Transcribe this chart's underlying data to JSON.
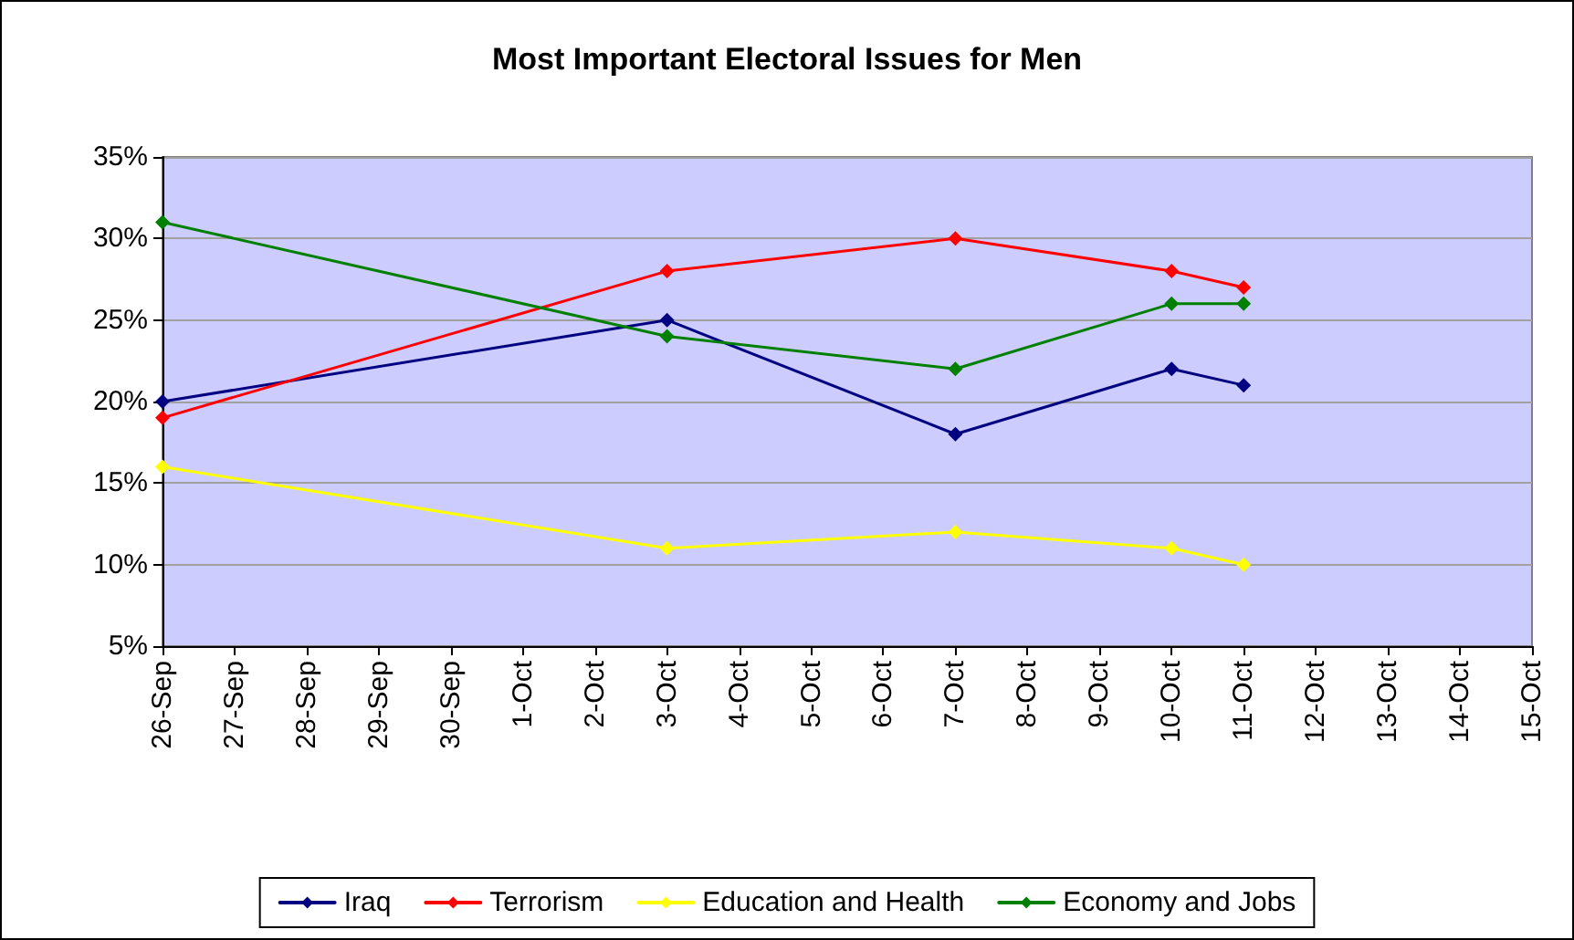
{
  "chart_data": {
    "type": "line",
    "title": "Most Important Electoral Issues for Men",
    "x": [
      "--09-26",
      "--10-03",
      "--10-07",
      "--10-10",
      "--10-11"
    ],
    "series": [
      {
        "name": "Iraq",
        "color": "#000080",
        "values": [
          20,
          25,
          18,
          22,
          21
        ]
      },
      {
        "name": "Terrorism",
        "color": "#ff0000",
        "values": [
          19,
          28,
          30,
          28,
          27
        ]
      },
      {
        "name": "Education and Health",
        "color": "#ffff00",
        "values": [
          16,
          11,
          12,
          11,
          10
        ]
      },
      {
        "name": "Economy and Jobs",
        "color": "#008000",
        "values": [
          31,
          24,
          22,
          26,
          26
        ]
      }
    ],
    "xlim": [
      "--09-26",
      "--10-15"
    ],
    "xticks": [
      {
        "value": "--09-26",
        "label": "26-Sep"
      },
      {
        "value": "--09-27",
        "label": "27-Sep"
      },
      {
        "value": "--09-28",
        "label": "28-Sep"
      },
      {
        "value": "--09-29",
        "label": "29-Sep"
      },
      {
        "value": "--09-30",
        "label": "30-Sep"
      },
      {
        "value": "--10-01",
        "label": "1-Oct"
      },
      {
        "value": "--10-02",
        "label": "2-Oct"
      },
      {
        "value": "--10-03",
        "label": "3-Oct"
      },
      {
        "value": "--10-04",
        "label": "4-Oct"
      },
      {
        "value": "--10-05",
        "label": "5-Oct"
      },
      {
        "value": "--10-06",
        "label": "6-Oct"
      },
      {
        "value": "--10-07",
        "label": "7-Oct"
      },
      {
        "value": "--10-08",
        "label": "8-Oct"
      },
      {
        "value": "--10-09",
        "label": "9-Oct"
      },
      {
        "value": "--10-10",
        "label": "10-Oct"
      },
      {
        "value": "--10-11",
        "label": "11-Oct"
      },
      {
        "value": "--10-12",
        "label": "12-Oct"
      },
      {
        "value": "--10-13",
        "label": "13-Oct"
      },
      {
        "value": "--10-14",
        "label": "14-Oct"
      },
      {
        "value": "--10-15",
        "label": "15-Oct"
      }
    ],
    "ylim": [
      5,
      35
    ],
    "yticks": [
      {
        "value": 5,
        "label": "5%"
      },
      {
        "value": 10,
        "label": "10%"
      },
      {
        "value": 15,
        "label": "15%"
      },
      {
        "value": 20,
        "label": "20%"
      },
      {
        "value": 25,
        "label": "25%"
      },
      {
        "value": 30,
        "label": "30%"
      },
      {
        "value": 35,
        "label": "35%"
      }
    ],
    "grid": "y",
    "legend": "bottom",
    "marker": "diamond",
    "line_style": "solid"
  }
}
